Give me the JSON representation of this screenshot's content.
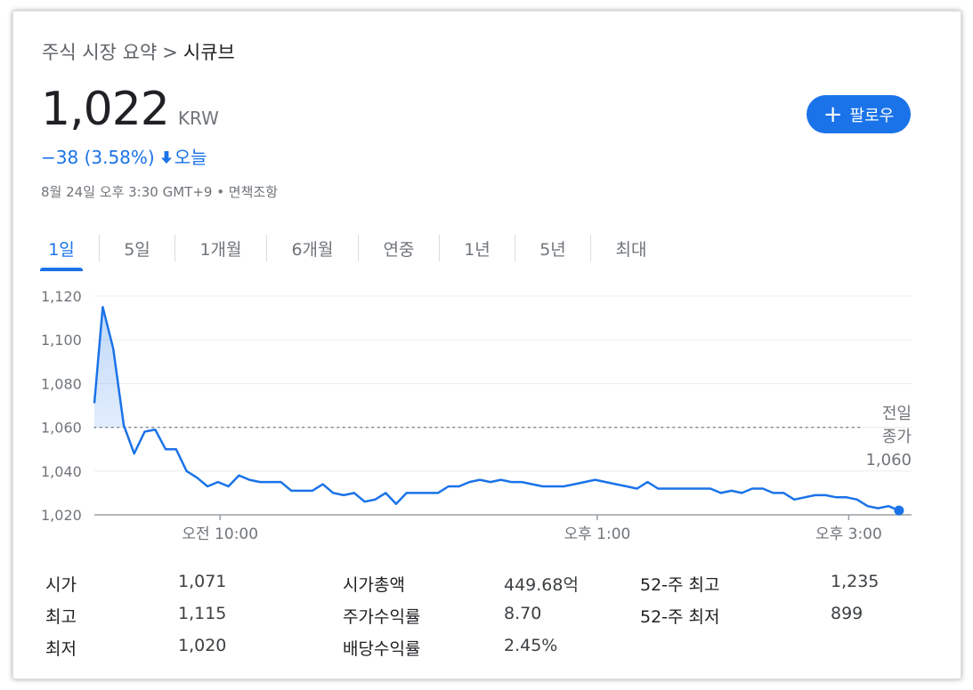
{
  "breadcrumb": {
    "parent": "주식 시장 요약",
    "separator": ">",
    "current": "시큐브"
  },
  "quote": {
    "price": "1,022",
    "currency": "KRW",
    "change": "−38 (3.58%)",
    "change_direction": "down",
    "change_period": "오늘",
    "timestamp": "8월 24일 오후 3:30 GMT+9 • 면책조항"
  },
  "follow_button": {
    "label": "팔로우",
    "icon": "plus-icon"
  },
  "tabs": [
    {
      "label": "1일",
      "active": true
    },
    {
      "label": "5일",
      "active": false
    },
    {
      "label": "1개월",
      "active": false
    },
    {
      "label": "6개월",
      "active": false
    },
    {
      "label": "연중",
      "active": false
    },
    {
      "label": "1년",
      "active": false
    },
    {
      "label": "5년",
      "active": false
    },
    {
      "label": "최대",
      "active": false
    }
  ],
  "chart_data": {
    "type": "line",
    "ylim": [
      1020,
      1120
    ],
    "y_ticks": [
      "1,020",
      "1,040",
      "1,060",
      "1,080",
      "1,100",
      "1,120"
    ],
    "y_tick_values": [
      1020,
      1040,
      1060,
      1080,
      1100,
      1120
    ],
    "x_ticks": [
      {
        "label": "오전 10:00",
        "minute": 60
      },
      {
        "label": "오후 1:00",
        "minute": 240
      },
      {
        "label": "오후 3:00",
        "minute": 360
      }
    ],
    "x_range_minutes": [
      0,
      390
    ],
    "reference": {
      "label_line1": "전일",
      "label_line2": "종가",
      "value": 1060,
      "value_label": "1,060"
    },
    "grid": true,
    "line_color": "#1a73e8",
    "series": [
      {
        "x": [
          0,
          4,
          9,
          14,
          19,
          24,
          29,
          34,
          39,
          44,
          49,
          54,
          59,
          64,
          69,
          74,
          79,
          84,
          89,
          94,
          99,
          104,
          109,
          114,
          119,
          124,
          129,
          134,
          139,
          144,
          149,
          154,
          159,
          164,
          169,
          174,
          179,
          184,
          189,
          194,
          199,
          204,
          209,
          214,
          219,
          224,
          229,
          234,
          239,
          244,
          249,
          254,
          259,
          264,
          269,
          274,
          279,
          284,
          289,
          294,
          299,
          304,
          309,
          314,
          319,
          324,
          329,
          334,
          339,
          344,
          349,
          354,
          359,
          364,
          369,
          374,
          379,
          384
        ],
        "y": [
          1071,
          1115,
          1096,
          1061,
          1048,
          1058,
          1059,
          1050,
          1050,
          1040,
          1037,
          1033,
          1035,
          1033,
          1038,
          1036,
          1035,
          1035,
          1035,
          1031,
          1031,
          1031,
          1034,
          1030,
          1029,
          1030,
          1026,
          1027,
          1030,
          1025,
          1030,
          1030,
          1030,
          1030,
          1033,
          1033,
          1035,
          1036,
          1035,
          1036,
          1035,
          1035,
          1034,
          1033,
          1033,
          1033,
          1034,
          1035,
          1036,
          1035,
          1034,
          1033,
          1032,
          1035,
          1032,
          1032,
          1032,
          1032,
          1032,
          1032,
          1030,
          1031,
          1030,
          1032,
          1032,
          1030,
          1030,
          1027,
          1028,
          1029,
          1029,
          1028,
          1028,
          1027,
          1024,
          1023,
          1024,
          1022
        ]
      }
    ]
  },
  "stats": {
    "open_label": "시가",
    "open_value": "1,071",
    "high_label": "최고",
    "high_value": "1,115",
    "low_label": "최저",
    "low_value": "1,020",
    "mktcap_label": "시가총액",
    "mktcap_value": "449.68억",
    "pe_label": "주가수익률",
    "pe_value": "8.70",
    "div_label": "배당수익률",
    "div_value": "2.45%",
    "high52_label": "52-주 최고",
    "high52_value": "1,235",
    "low52_label": "52-주 최저",
    "low52_value": "899"
  }
}
